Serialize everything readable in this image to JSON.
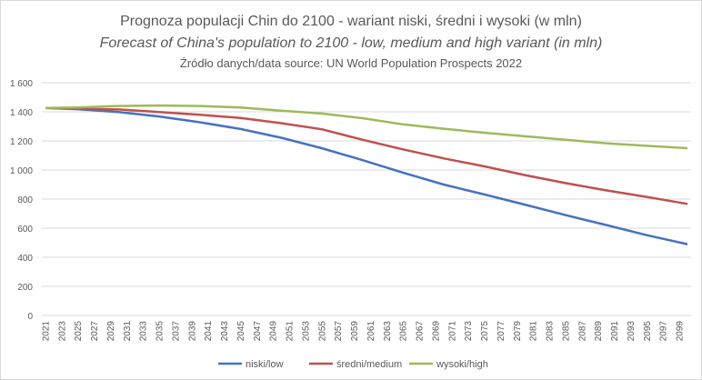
{
  "chart_data": {
    "type": "line",
    "title": "Prognoza populacji Chin do 2100 - wariant niski, średni i  wysoki (w mln)",
    "subtitle": "Forecast of China's population to 2100 - low, medium and high variant (in mln)",
    "source": "Źródło danych/data source: UN World Population Prospects 2022",
    "xlabel": "",
    "ylabel": "",
    "ylim": [
      0,
      1600
    ],
    "yticks": [
      0,
      200,
      400,
      600,
      800,
      1000,
      1200,
      1400,
      1600
    ],
    "ytick_labels": [
      "0",
      "200",
      "400",
      "600",
      "800",
      "1 000",
      "1 200",
      "1 400",
      "1 600"
    ],
    "x_start": 2021,
    "x_end": 2100,
    "xtick_labels": [
      "2021",
      "2023",
      "2025",
      "2027",
      "2029",
      "2031",
      "2033",
      "2035",
      "2037",
      "2039",
      "2041",
      "2043",
      "2045",
      "2047",
      "2049",
      "2051",
      "2053",
      "2055",
      "2057",
      "2059",
      "2061",
      "2063",
      "2065",
      "2067",
      "2069",
      "2071",
      "2073",
      "2075",
      "2077",
      "2079",
      "2081",
      "2083",
      "2085",
      "2087",
      "2089",
      "2091",
      "2093",
      "2095",
      "2097",
      "2099"
    ],
    "grid": true,
    "legend_position": "bottom",
    "series": [
      {
        "name": "niski/low",
        "color": "#4472c4",
        "x": [
          2021,
          2025,
          2030,
          2035,
          2040,
          2045,
          2050,
          2055,
          2060,
          2065,
          2070,
          2075,
          2080,
          2085,
          2090,
          2095,
          2100
        ],
        "values": [
          1426,
          1418,
          1398,
          1368,
          1328,
          1282,
          1222,
          1150,
          1068,
          982,
          900,
          832,
          762,
          690,
          622,
          552,
          490
        ]
      },
      {
        "name": "średni/medium",
        "color": "#c0504d",
        "x": [
          2021,
          2025,
          2030,
          2035,
          2040,
          2045,
          2050,
          2055,
          2060,
          2065,
          2070,
          2075,
          2080,
          2085,
          2090,
          2095,
          2100
        ],
        "values": [
          1426,
          1420,
          1416,
          1398,
          1380,
          1358,
          1322,
          1280,
          1208,
          1142,
          1080,
          1025,
          965,
          910,
          860,
          815,
          767
        ]
      },
      {
        "name": "wysoki/high",
        "color": "#9bbb59",
        "x": [
          2021,
          2025,
          2030,
          2035,
          2040,
          2045,
          2050,
          2055,
          2060,
          2065,
          2070,
          2075,
          2080,
          2085,
          2090,
          2095,
          2100
        ],
        "values": [
          1426,
          1430,
          1440,
          1444,
          1440,
          1430,
          1408,
          1388,
          1356,
          1314,
          1284,
          1256,
          1232,
          1208,
          1184,
          1166,
          1150
        ]
      }
    ]
  }
}
